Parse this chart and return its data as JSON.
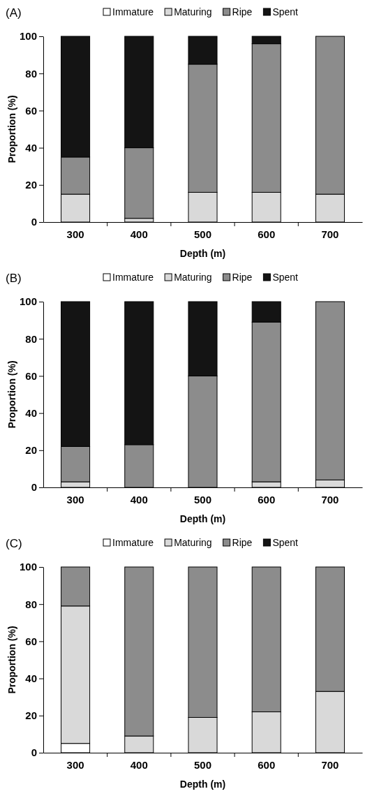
{
  "chart_data": [
    {
      "type": "bar",
      "title": "(A)",
      "xlabel": "Depth (m)",
      "ylabel": "Proportion (%)",
      "categories": [
        "300",
        "400",
        "500",
        "600",
        "700"
      ],
      "stacked": true,
      "legend": "top",
      "ylim": [
        0,
        100
      ],
      "yticks": [
        0,
        20,
        40,
        60,
        80,
        100
      ],
      "series": [
        {
          "name": "Immature",
          "color": "#ffffff",
          "values": [
            0,
            0,
            0,
            0,
            0
          ]
        },
        {
          "name": "Maturing",
          "color": "#d9d9d9",
          "values": [
            15,
            2,
            16,
            16,
            15
          ]
        },
        {
          "name": "Ripe",
          "color": "#8c8c8c",
          "values": [
            20,
            38,
            69,
            80,
            85
          ]
        },
        {
          "name": "Spent",
          "color": "#141414",
          "values": [
            65,
            60,
            15,
            4,
            0
          ]
        }
      ]
    },
    {
      "type": "bar",
      "title": "(B)",
      "xlabel": "Depth (m)",
      "ylabel": "Proportion (%)",
      "categories": [
        "300",
        "400",
        "500",
        "600",
        "700"
      ],
      "stacked": true,
      "legend": "top",
      "ylim": [
        0,
        100
      ],
      "yticks": [
        0,
        20,
        40,
        60,
        80,
        100
      ],
      "series": [
        {
          "name": "Immature",
          "color": "#ffffff",
          "values": [
            0,
            0,
            0,
            0,
            0
          ]
        },
        {
          "name": "Maturing",
          "color": "#d9d9d9",
          "values": [
            3,
            0,
            0,
            3,
            4
          ]
        },
        {
          "name": "Ripe",
          "color": "#8c8c8c",
          "values": [
            19,
            23,
            60,
            86,
            96
          ]
        },
        {
          "name": "Spent",
          "color": "#141414",
          "values": [
            78,
            77,
            40,
            11,
            0
          ]
        }
      ]
    },
    {
      "type": "bar",
      "title": "(C)",
      "xlabel": "Depth (m)",
      "ylabel": "Proportion (%)",
      "categories": [
        "300",
        "400",
        "500",
        "600",
        "700"
      ],
      "stacked": true,
      "legend": "top",
      "ylim": [
        0,
        100
      ],
      "yticks": [
        0,
        20,
        40,
        60,
        80,
        100
      ],
      "series": [
        {
          "name": "Immature",
          "color": "#ffffff",
          "values": [
            5,
            0,
            0,
            0,
            0
          ]
        },
        {
          "name": "Maturing",
          "color": "#d9d9d9",
          "values": [
            74,
            9,
            19,
            22,
            33
          ]
        },
        {
          "name": "Ripe",
          "color": "#8c8c8c",
          "values": [
            21,
            91,
            81,
            78,
            67
          ]
        },
        {
          "name": "Spent",
          "color": "#141414",
          "values": [
            0,
            0,
            0,
            0,
            0
          ]
        }
      ]
    }
  ]
}
